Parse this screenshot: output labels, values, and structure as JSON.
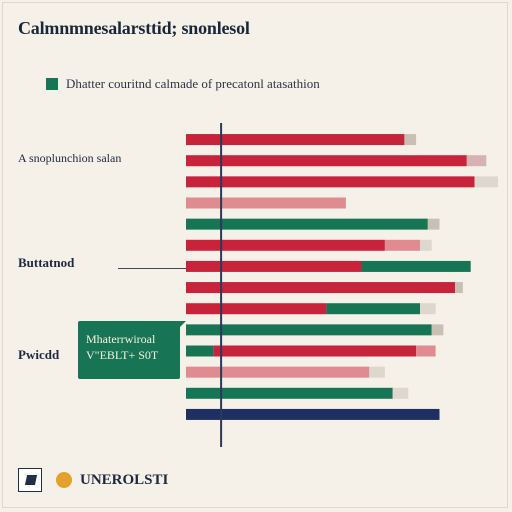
{
  "header": {
    "title": "Calmnmnesalarsttid; snonlesol",
    "legend": "Dhatter couritnd calmade of precatonl atasathion"
  },
  "left_labels": {
    "a": "A snoplunchion salan",
    "b": "Buttatnod",
    "c": "Pwicdd"
  },
  "callout": {
    "line1": "Mhaterrwiroal",
    "line2": "V\"EBLT+ S0T"
  },
  "footer": {
    "brand": "UNEROLSTI"
  },
  "chart_data": {
    "type": "bar",
    "title": "Calmnmnesalarsttid; snonlesol",
    "legend": [
      "Dhatter couritnd calmade of precatonl atasathion"
    ],
    "orientation": "horizontal",
    "rows": [
      {
        "segments": [
          {
            "value": 56,
            "color": "#c7233a"
          },
          {
            "value": 3,
            "color": "#c8c0b5"
          }
        ]
      },
      {
        "segments": [
          {
            "value": 72,
            "color": "#c7233a"
          },
          {
            "value": 5,
            "color": "#d7b2b3"
          }
        ]
      },
      {
        "segments": [
          {
            "value": 74,
            "color": "#c7233a"
          },
          {
            "value": 6,
            "color": "#ddd7ce"
          }
        ]
      },
      {
        "segments": [
          {
            "value": 41,
            "color": "#df8b8f"
          }
        ]
      },
      {
        "segments": [
          {
            "value": 62,
            "color": "#177555"
          },
          {
            "value": 3,
            "color": "#c8c0b5"
          }
        ]
      },
      {
        "segments": [
          {
            "value": 51,
            "color": "#c7233a"
          },
          {
            "value": 9,
            "color": "#df8b8f"
          },
          {
            "value": 3,
            "color": "#ddd7ce"
          }
        ]
      },
      {
        "segments": [
          {
            "value": 45,
            "color": "#c7233a"
          },
          {
            "value": 28,
            "color": "#177555"
          }
        ]
      },
      {
        "segments": [
          {
            "value": 69,
            "color": "#c7233a"
          },
          {
            "value": 2,
            "color": "#c8c0b5"
          }
        ]
      },
      {
        "segments": [
          {
            "value": 36,
            "color": "#c7233a"
          },
          {
            "value": 24,
            "color": "#177555"
          },
          {
            "value": 4,
            "color": "#ddd7ce"
          }
        ]
      },
      {
        "segments": [
          {
            "value": 63,
            "color": "#177555"
          },
          {
            "value": 3,
            "color": "#c8c0b5"
          }
        ]
      },
      {
        "segments": [
          {
            "value": 7,
            "color": "#177555"
          },
          {
            "value": 52,
            "color": "#c7233a"
          },
          {
            "value": 5,
            "color": "#df8b8f"
          }
        ]
      },
      {
        "segments": [
          {
            "value": 47,
            "color": "#df8b8f"
          },
          {
            "value": 4,
            "color": "#ddd7ce"
          }
        ]
      },
      {
        "segments": [
          {
            "value": 53,
            "color": "#177555"
          },
          {
            "value": 4,
            "color": "#ddd7ce"
          }
        ]
      },
      {
        "segments": [
          {
            "value": 65,
            "color": "#1f2f61"
          }
        ]
      }
    ],
    "xlim": [
      0,
      80
    ],
    "grid": false,
    "reference_line_at": 9
  }
}
